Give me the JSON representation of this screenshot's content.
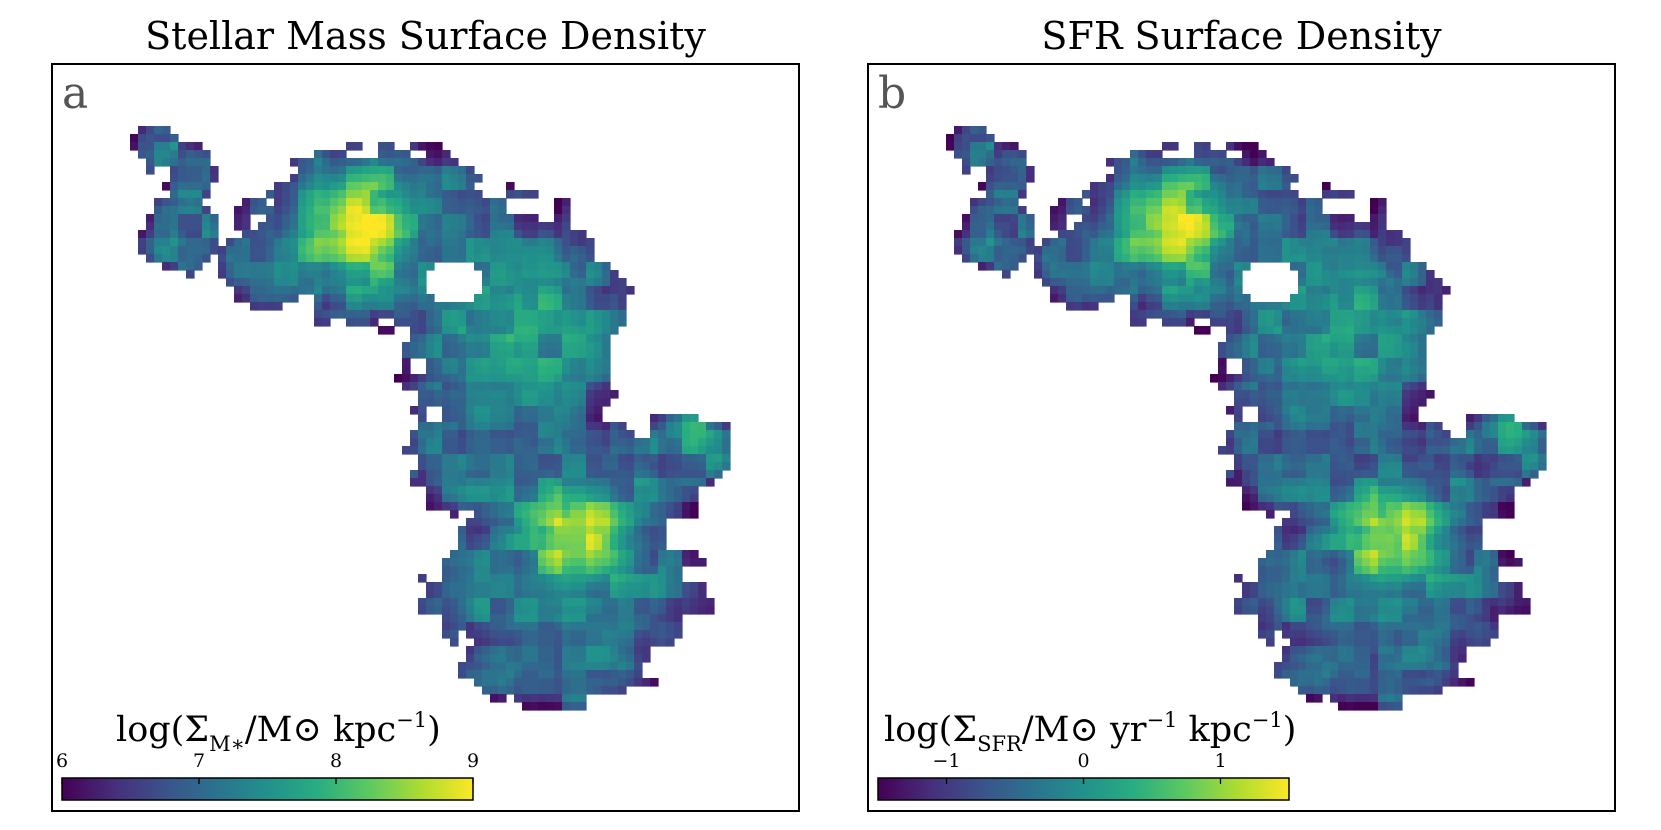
{
  "chart_data": [
    {
      "type": "heatmap",
      "panel_letter": "a",
      "title": "Stellar Mass Surface Density",
      "colormap": "viridis",
      "colorbar": {
        "label_main": "log(Σ",
        "label_sub": "M∗",
        "label_rest": "/M⊙ kpc",
        "label_sup": "−1",
        "label_close": ")",
        "range": [
          6,
          9
        ],
        "ticks": [
          6,
          7,
          8,
          9
        ],
        "tick_labels": [
          "6",
          "7",
          "8",
          "9"
        ],
        "placement": "bottom-left"
      }
    },
    {
      "type": "heatmap",
      "panel_letter": "b",
      "title": "SFR Surface Density",
      "colormap": "viridis",
      "colorbar": {
        "label_main": "log(Σ",
        "label_sub": "SFR",
        "label_rest": "/M⊙ yr",
        "label_sup": "−1",
        "label_mid": " kpc",
        "label_sup2": "−1",
        "label_close": ")",
        "range": [
          -1.5,
          1.5
        ],
        "ticks": [
          -1,
          0,
          1
        ],
        "tick_labels": [
          "−1",
          "0",
          "1"
        ],
        "placement": "bottom-left"
      }
    }
  ],
  "colors": {
    "viridis": [
      "#440154",
      "#472d7b",
      "#3b528b",
      "#2c728e",
      "#21918c",
      "#28ae80",
      "#5ec962",
      "#addc30",
      "#fde725"
    ],
    "frame": "#000000",
    "panel_letter": "#555555"
  }
}
